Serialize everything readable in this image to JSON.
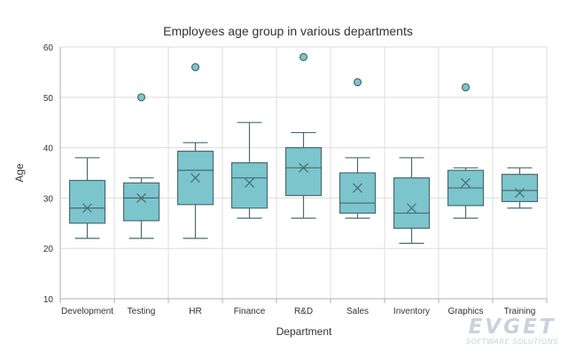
{
  "chart_data": {
    "type": "boxplot",
    "title": "Employees age group in various departments",
    "xlabel": "Department",
    "ylabel": "Age",
    "ylim": [
      10,
      60
    ],
    "yticks": [
      10,
      20,
      30,
      40,
      50,
      60
    ],
    "grid": true,
    "legend": "none",
    "categories": [
      "Development",
      "Testing",
      "HR",
      "Finance",
      "R&D",
      "Sales",
      "Inventory",
      "Graphics",
      "Training"
    ],
    "boxes": [
      {
        "name": "Development",
        "min": 22,
        "q1": 25,
        "median": 28,
        "q3": 33.5,
        "max": 38,
        "mean": 28,
        "outliers": []
      },
      {
        "name": "Testing",
        "min": 22,
        "q1": 25.5,
        "median": 30,
        "q3": 33,
        "max": 34,
        "mean": 30,
        "outliers": [
          50
        ]
      },
      {
        "name": "HR",
        "min": 22,
        "q1": 28.7,
        "median": 35.5,
        "q3": 39.3,
        "max": 41,
        "mean": 34,
        "outliers": [
          56
        ]
      },
      {
        "name": "Finance",
        "min": 26,
        "q1": 28,
        "median": 34,
        "q3": 37,
        "max": 45,
        "mean": 33,
        "outliers": []
      },
      {
        "name": "R&D",
        "min": 26,
        "q1": 30.5,
        "median": 36,
        "q3": 40,
        "max": 43,
        "mean": 36,
        "outliers": [
          58
        ]
      },
      {
        "name": "Sales",
        "min": 26,
        "q1": 27,
        "median": 29,
        "q3": 35,
        "max": 38,
        "mean": 32,
        "outliers": [
          53
        ]
      },
      {
        "name": "Inventory",
        "min": 21,
        "q1": 24,
        "median": 27,
        "q3": 34,
        "max": 38,
        "mean": 28,
        "outliers": []
      },
      {
        "name": "Graphics",
        "min": 26,
        "q1": 28.5,
        "median": 32,
        "q3": 35.5,
        "max": 36,
        "mean": 33,
        "outliers": [
          52
        ]
      },
      {
        "name": "Training",
        "min": 28,
        "q1": 29.3,
        "median": 31.5,
        "q3": 34.7,
        "max": 36,
        "mean": 31,
        "outliers": []
      }
    ],
    "colors": {
      "box_fill": "#7cc5cd",
      "box_stroke": "#4a6b70",
      "grid": "#dcdcdc",
      "axis": "#b0b0b0",
      "text": "#333333"
    }
  },
  "watermark": {
    "main": "EVGET",
    "sub": "SOFTWARE SOLUTIONS"
  }
}
